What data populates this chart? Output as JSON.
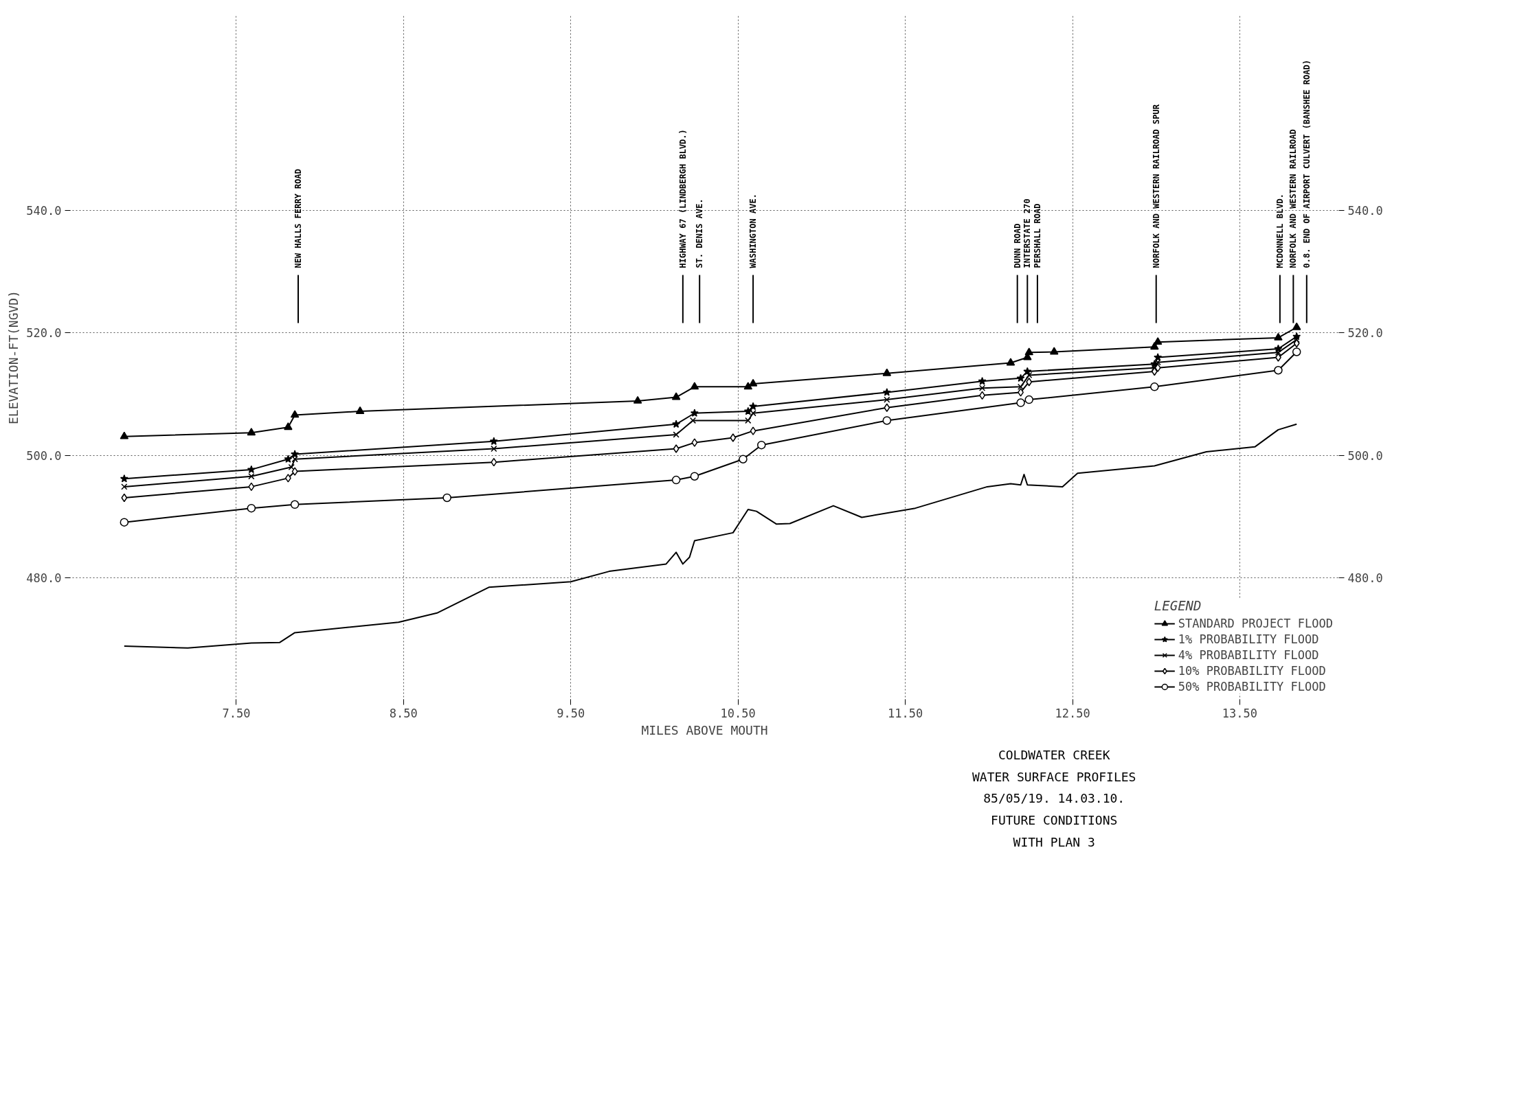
{
  "chart_data": {
    "type": "line",
    "title": "COLDWATER CREEK",
    "subtitle": "WATER SURFACE PROFILES",
    "xlabel": "MILES ABOVE MOUTH",
    "ylabel": "ELEVATION-FT(NGVD)",
    "legend_title": "LEGEND",
    "legend": "bottom right",
    "grid": true,
    "line_style": "solid",
    "xlim": [
      6.5,
      14.1
    ],
    "ylim": [
      460,
      572
    ],
    "y2lim": [
      460,
      572
    ],
    "xticks": [
      {
        "value": 7.5,
        "label": "7.50"
      },
      {
        "value": 8.5,
        "label": "8.50"
      },
      {
        "value": 9.5,
        "label": "9.50"
      },
      {
        "value": 10.5,
        "label": "10.50"
      },
      {
        "value": 11.5,
        "label": "11.50"
      },
      {
        "value": 12.5,
        "label": "12.50"
      },
      {
        "value": 13.5,
        "label": "13.50"
      }
    ],
    "yticks": [
      {
        "value": 480,
        "label": "480.0"
      },
      {
        "value": 500,
        "label": "500.0"
      },
      {
        "value": 520,
        "label": "520.0"
      },
      {
        "value": 540,
        "label": "540.0"
      }
    ],
    "y2ticks": [
      {
        "value": 480,
        "label": "480.0"
      },
      {
        "value": 500,
        "label": "500.0"
      },
      {
        "value": 520,
        "label": "520.0"
      },
      {
        "value": 540,
        "label": "540.0"
      }
    ],
    "series": [
      {
        "name": "STANDARD PROJECT FLOOD",
        "color": "#000000",
        "marker": "triangle",
        "x": [
          6.83,
          7.59,
          7.81,
          7.85,
          8.24,
          9.9,
          10.13,
          10.24,
          10.56,
          10.59,
          11.39,
          12.13,
          12.23,
          12.24,
          12.39,
          12.99,
          13.01,
          13.73,
          13.84
        ],
        "values": [
          503.1,
          503.7,
          504.6,
          506.6,
          507.2,
          508.9,
          509.5,
          511.2,
          511.2,
          511.7,
          513.4,
          515.1,
          516.0,
          516.8,
          516.9,
          517.7,
          518.5,
          519.2,
          520.9
        ]
      },
      {
        "name": "1% PROBABILITY FLOOD",
        "color": "#000000",
        "marker": "star",
        "x": [
          6.83,
          7.59,
          7.81,
          7.85,
          9.04,
          10.13,
          10.24,
          10.56,
          10.59,
          11.39,
          11.96,
          12.19,
          12.23,
          12.99,
          13.01,
          13.73,
          13.84
        ],
        "values": [
          496.2,
          497.7,
          499.4,
          500.2,
          502.3,
          505.1,
          506.9,
          507.2,
          508.0,
          510.3,
          512.1,
          512.6,
          513.7,
          514.9,
          516.0,
          517.4,
          519.4
        ]
      },
      {
        "name": "4% PROBABILITY FLOOD",
        "color": "#000000",
        "marker": "cross",
        "x": [
          6.83,
          7.59,
          7.83,
          7.85,
          9.04,
          10.13,
          10.23,
          10.56,
          10.59,
          11.39,
          11.96,
          12.19,
          12.24,
          12.99,
          13.01,
          13.73,
          13.84
        ],
        "values": [
          494.9,
          496.6,
          498.1,
          499.4,
          501.1,
          503.4,
          505.7,
          505.7,
          506.9,
          509.1,
          511.0,
          511.2,
          513.1,
          514.3,
          515.2,
          516.8,
          518.9
        ]
      },
      {
        "name": "10% PROBABILITY FLOOD",
        "color": "#000000",
        "marker": "diamond",
        "x": [
          6.83,
          7.59,
          7.81,
          7.85,
          9.04,
          10.13,
          10.24,
          10.47,
          10.59,
          11.39,
          11.96,
          12.19,
          12.24,
          12.99,
          13.01,
          13.73,
          13.84
        ],
        "values": [
          493.1,
          494.9,
          496.3,
          497.4,
          498.9,
          501.1,
          502.1,
          502.9,
          504.0,
          507.8,
          509.8,
          510.3,
          512.0,
          513.7,
          514.3,
          516.0,
          518.3
        ]
      },
      {
        "name": "50% PROBABILITY FLOOD",
        "color": "#000000",
        "marker": "circle",
        "x": [
          6.83,
          7.59,
          7.85,
          8.76,
          10.13,
          10.24,
          10.53,
          10.64,
          11.39,
          12.19,
          12.24,
          12.99,
          13.73,
          13.84
        ],
        "values": [
          489.1,
          491.4,
          492.0,
          493.1,
          496.0,
          496.6,
          499.4,
          501.7,
          505.7,
          508.6,
          509.1,
          511.2,
          513.9,
          516.9
        ]
      },
      {
        "color": "#000000",
        "marker": "none",
        "x": [
          6.83,
          7.21,
          7.59,
          7.76,
          7.85,
          8.47,
          8.7,
          9.01,
          9.5,
          9.73,
          10.07,
          10.13,
          10.17,
          10.21,
          10.24,
          10.47,
          10.56,
          10.61,
          10.73,
          10.81,
          11.07,
          11.24,
          11.56,
          11.99,
          12.13,
          12.19,
          12.21,
          12.23,
          12.44,
          12.53,
          12.99,
          13.3,
          13.59,
          13.73,
          13.84
        ],
        "values": [
          468.9,
          468.6,
          469.4,
          469.5,
          471.1,
          472.8,
          474.3,
          478.5,
          479.4,
          481.1,
          482.3,
          484.2,
          482.3,
          483.4,
          486.1,
          487.4,
          491.2,
          490.9,
          488.8,
          488.9,
          491.8,
          489.9,
          491.4,
          494.9,
          495.4,
          495.2,
          496.9,
          495.2,
          494.9,
          497.1,
          498.3,
          500.6,
          501.4,
          504.2,
          505.1
        ]
      }
    ],
    "ref_lines": [
      {
        "axis": "x",
        "value": 7.87,
        "label": "NEW HALLS FERRY ROAD"
      },
      {
        "axis": "x",
        "value": 10.17,
        "label": "HIGHWAY 67 (LINDBERGH BLVD.)"
      },
      {
        "axis": "x",
        "value": 10.27,
        "label": "ST. DENIS AVE."
      },
      {
        "axis": "x",
        "value": 10.59,
        "label": "WASHINGTON AVE."
      },
      {
        "axis": "x",
        "value": 12.17,
        "label": "DUNN ROAD"
      },
      {
        "axis": "x",
        "value": 12.23,
        "label": "INTERSTATE 270"
      },
      {
        "axis": "x",
        "value": 12.29,
        "label": "PERSHALL ROAD"
      },
      {
        "axis": "x",
        "value": 13.0,
        "label": "NORFOLK AND WESTERN RAILROAD SPUR"
      },
      {
        "axis": "x",
        "value": 13.74,
        "label": "MCDONNELL BLVD."
      },
      {
        "axis": "x",
        "value": 13.82,
        "label": "NORFOLK AND WESTERN RAILROAD"
      },
      {
        "axis": "x",
        "value": 13.9,
        "label": "0.8. END OF AIRPORT CULVERT (BANSHEE ROAD)"
      }
    ],
    "annotations": [
      "85/05/19.  14.03.10.",
      "FUTURE CONDITIONS",
      "WITH PLAN 3"
    ]
  }
}
